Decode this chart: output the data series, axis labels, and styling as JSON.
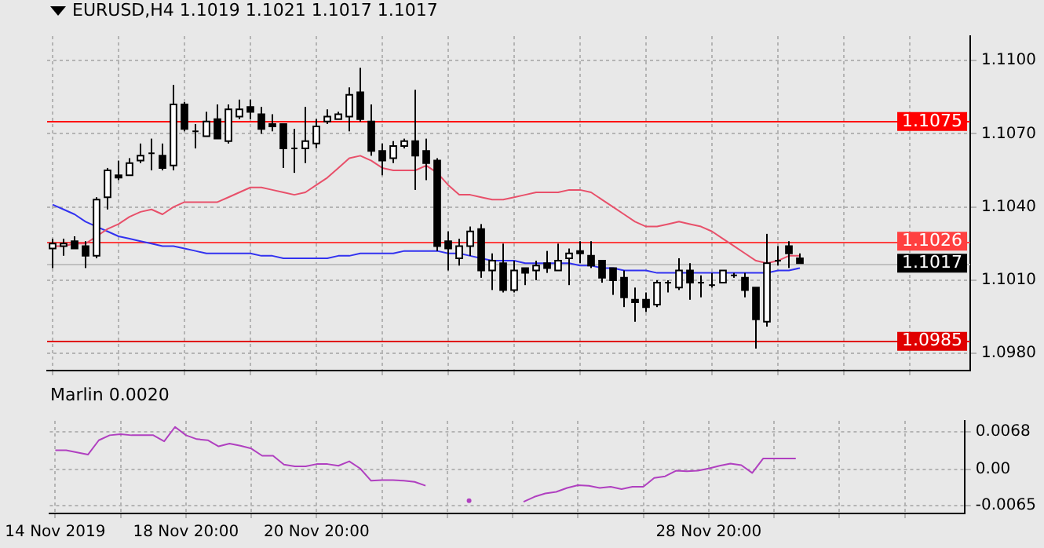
{
  "chart_data": [
    {
      "type": "candlestick",
      "title": "EURUSD,H4  1.1019 1.1021 1.1017 1.1017",
      "categories": [
        null,
        null,
        null,
        null,
        null,
        null,
        null,
        null,
        null,
        null,
        null,
        null,
        null,
        null,
        null,
        null,
        null,
        null,
        null,
        null,
        null,
        null,
        null,
        null,
        null,
        null,
        null,
        null,
        null,
        null,
        null,
        null,
        null,
        null,
        null,
        null,
        null,
        null,
        null,
        null,
        null,
        null,
        null,
        null,
        null,
        null,
        null,
        null,
        null,
        null,
        null,
        null,
        null,
        null,
        null,
        null,
        null,
        null,
        null,
        null,
        null,
        null,
        null,
        null,
        null,
        null,
        null,
        null,
        null,
        null,
        null,
        null,
        null,
        null,
        null,
        null,
        null,
        null,
        null,
        null,
        null,
        null,
        null,
        null
      ],
      "ohlc": [
        [
          1.1023,
          1.1027,
          1.1015,
          1.1025
        ],
        [
          1.1024,
          1.1027,
          1.102,
          1.1025
        ],
        [
          1.1026,
          1.1028,
          1.1023,
          1.1023
        ],
        [
          1.1024,
          1.1026,
          1.1015,
          1.102
        ],
        [
          1.102,
          1.1044,
          1.1019,
          1.1043
        ],
        [
          1.1044,
          1.1056,
          1.1039,
          1.1055
        ],
        [
          1.1053,
          1.1059,
          1.1051,
          1.1052
        ],
        [
          1.1053,
          1.106,
          1.1053,
          1.1058
        ],
        [
          1.1059,
          1.1066,
          1.1058,
          1.1061
        ],
        [
          1.1062,
          1.1068,
          1.1055,
          1.1062
        ],
        [
          1.1061,
          1.1066,
          1.1055,
          1.1056
        ],
        [
          1.1057,
          1.109,
          1.1055,
          1.1082
        ],
        [
          1.1082,
          1.1083,
          1.1071,
          1.1072
        ],
        [
          1.1071,
          1.1074,
          1.1064,
          1.1071
        ],
        [
          1.1069,
          1.1079,
          1.1069,
          1.1075
        ],
        [
          1.1076,
          1.1082,
          1.1068,
          1.1068
        ],
        [
          1.1067,
          1.1082,
          1.1066,
          1.108
        ],
        [
          1.1077,
          1.1084,
          1.1076,
          1.108
        ],
        [
          1.1081,
          1.1084,
          1.1076,
          1.1079
        ],
        [
          1.1078,
          1.1081,
          1.107,
          1.1072
        ],
        [
          1.1074,
          1.1078,
          1.1071,
          1.1073
        ],
        [
          1.1074,
          1.1074,
          1.1056,
          1.1064
        ],
        [
          1.1064,
          1.1072,
          1.1054,
          1.1064
        ],
        [
          1.1064,
          1.1081,
          1.1058,
          1.1067
        ],
        [
          1.1066,
          1.1076,
          1.1064,
          1.1073
        ],
        [
          1.1075,
          1.108,
          1.1074,
          1.1077
        ],
        [
          1.1076,
          1.1079,
          1.1076,
          1.1078
        ],
        [
          1.1077,
          1.1089,
          1.1071,
          1.1086
        ],
        [
          1.1087,
          1.1097,
          1.1075,
          1.1076
        ],
        [
          1.1075,
          1.1082,
          1.1061,
          1.1063
        ],
        [
          1.1063,
          1.1066,
          1.1053,
          1.1059
        ],
        [
          1.106,
          1.1067,
          1.1058,
          1.1065
        ],
        [
          1.1065,
          1.1068,
          1.1064,
          1.1067
        ],
        [
          1.1067,
          1.1088,
          1.1047,
          1.1061
        ],
        [
          1.1063,
          1.1068,
          1.1051,
          1.1058
        ],
        [
          1.1059,
          1.106,
          1.1022,
          1.1024
        ],
        [
          1.1026,
          1.103,
          1.1014,
          1.1023
        ],
        [
          1.1019,
          1.1027,
          1.1016,
          1.1024
        ],
        [
          1.1024,
          1.1032,
          1.102,
          1.103
        ],
        [
          1.1031,
          1.1033,
          1.1011,
          1.1014
        ],
        [
          1.1014,
          1.1021,
          1.1006,
          1.1018
        ],
        [
          1.1017,
          1.1025,
          1.1005,
          1.1006
        ],
        [
          1.1006,
          1.1018,
          1.1005,
          1.1014
        ],
        [
          1.1015,
          1.1015,
          1.1008,
          1.1013
        ],
        [
          1.1014,
          1.1018,
          1.101,
          1.1016
        ],
        [
          1.1017,
          1.1022,
          1.1013,
          1.1015
        ],
        [
          1.1014,
          1.1025,
          1.1014,
          1.1018
        ],
        [
          1.1019,
          1.1023,
          1.1008,
          1.1021
        ],
        [
          1.1022,
          1.1026,
          1.1017,
          1.1021
        ],
        [
          1.102,
          1.1026,
          1.1015,
          1.1016
        ],
        [
          1.1018,
          1.1018,
          1.1009,
          1.1011
        ],
        [
          1.1015,
          1.1015,
          1.1004,
          1.101
        ],
        [
          1.1011,
          1.1014,
          1.0999,
          1.1003
        ],
        [
          1.1002,
          1.1007,
          1.0993,
          1.1001
        ],
        [
          1.1002,
          1.1005,
          1.0997,
          1.0999
        ],
        [
          1.1,
          1.101,
          1.0999,
          1.1009
        ],
        [
          1.1009,
          1.101,
          1.1005,
          1.1009
        ],
        [
          1.1007,
          1.1019,
          1.1006,
          1.1014
        ],
        [
          1.1014,
          1.1017,
          1.1002,
          1.1009
        ],
        [
          1.1009,
          1.1012,
          1.1003,
          1.1009
        ],
        [
          1.1008,
          1.1013,
          1.1007,
          1.1008
        ],
        [
          1.1009,
          1.1014,
          1.1009,
          1.1014
        ],
        [
          1.1012,
          1.1013,
          1.1011,
          1.1012
        ],
        [
          1.1011,
          1.1013,
          1.1003,
          1.1006
        ],
        [
          1.1007,
          1.1007,
          1.0982,
          1.0994
        ],
        [
          1.0993,
          1.1029,
          1.0991,
          1.1017
        ],
        [
          1.1018,
          1.1024,
          1.1016,
          1.1018
        ],
        [
          1.1024,
          1.1026,
          1.1015,
          1.1021
        ],
        [
          1.1019,
          1.1021,
          1.1017,
          1.1017
        ],
        null,
        null,
        null,
        null,
        null,
        null,
        null,
        null,
        null,
        null,
        null,
        null,
        null,
        null,
        null
      ],
      "series": [
        {
          "type": "line",
          "color": "#e8506a",
          "values": [
            1.1024,
            1.1024,
            1.1025,
            1.1025,
            1.1028,
            1.1031,
            1.1033,
            1.1036,
            1.1038,
            1.1039,
            1.1037,
            1.104,
            1.1042,
            1.1042,
            1.1042,
            1.1042,
            1.1044,
            1.1046,
            1.1048,
            1.1048,
            1.1047,
            1.1046,
            1.1045,
            1.1046,
            1.1049,
            1.1052,
            1.1056,
            1.106,
            1.1061,
            1.1059,
            1.1056,
            1.1055,
            1.1055,
            1.1055,
            1.1057,
            1.1054,
            1.1049,
            1.1045,
            1.1045,
            1.1044,
            1.1043,
            1.1043,
            1.1044,
            1.1045,
            1.1046,
            1.1046,
            1.1046,
            1.1047,
            1.1047,
            1.1046,
            1.1043,
            1.104,
            1.1037,
            1.1034,
            1.1032,
            1.1032,
            1.1033,
            1.1034,
            1.1033,
            1.1032,
            1.103,
            1.1027,
            1.1024,
            1.1021,
            1.1018,
            1.1017,
            1.1018,
            1.102,
            1.102,
            null,
            null,
            null,
            null,
            null,
            null,
            null,
            null,
            null,
            null,
            null,
            null,
            null,
            null,
            null
          ]
        },
        {
          "type": "line",
          "color": "#3232f0",
          "values": [
            1.1041,
            1.1039,
            1.1037,
            1.1034,
            1.1032,
            1.103,
            1.1028,
            1.1027,
            1.1026,
            1.1025,
            1.1024,
            1.1024,
            1.1023,
            1.1022,
            1.1021,
            1.1021,
            1.1021,
            1.1021,
            1.1021,
            1.102,
            1.102,
            1.1019,
            1.1019,
            1.1019,
            1.1019,
            1.1019,
            1.102,
            1.102,
            1.1021,
            1.1021,
            1.1021,
            1.1021,
            1.1022,
            1.1022,
            1.1022,
            1.1022,
            1.1021,
            1.1021,
            1.102,
            1.1019,
            1.1018,
            1.1018,
            1.1018,
            1.1017,
            1.1017,
            1.1017,
            1.1017,
            1.1017,
            1.1016,
            1.1016,
            1.1015,
            1.1015,
            1.1014,
            1.1014,
            1.1014,
            1.1013,
            1.1013,
            1.1013,
            1.1013,
            1.1013,
            1.1013,
            1.1013,
            1.1013,
            1.1013,
            1.1013,
            1.1013,
            1.1014,
            1.1014,
            1.1015,
            null,
            null,
            null,
            null,
            null,
            null,
            null,
            null,
            null,
            null,
            null,
            null,
            null,
            null,
            null
          ]
        }
      ],
      "ylim": [
        1.0973,
        1.111
      ],
      "yticks": [
        {
          "value": 1.11,
          "label": "1.1100"
        },
        {
          "value": 1.107,
          "label": "1.1070"
        },
        {
          "value": 1.104,
          "label": "1.1040"
        },
        {
          "value": 1.101,
          "label": "1.1010"
        },
        {
          "value": 1.098,
          "label": "1.0980"
        }
      ],
      "ref_lines": [
        {
          "axis": "y",
          "value": 1.1075,
          "label": "1.1075",
          "color": "#ff0000"
        },
        {
          "axis": "y",
          "value": 1.1026,
          "label": "1.1026",
          "color": "#ff4040"
        },
        {
          "axis": "y",
          "value": 1.0985,
          "label": "1.0985",
          "color": "#e00000"
        },
        {
          "axis": "y",
          "value": 1.1017,
          "label": "1.1017",
          "color": "#c0c0c0"
        }
      ],
      "grid": true,
      "tick_labels": "y"
    },
    {
      "type": "line",
      "title": "Marlin 0.0020",
      "categories": [
        "14 Nov 2019",
        null,
        null,
        null,
        null,
        null,
        null,
        null,
        null,
        null,
        null,
        null,
        "18 Nov 20:00",
        null,
        null,
        null,
        null,
        null,
        null,
        null,
        null,
        null,
        null,
        null,
        "20 Nov 20:00",
        null,
        null,
        null,
        null,
        null,
        null,
        null,
        null,
        null,
        null,
        null,
        null,
        null,
        null,
        null,
        null,
        null,
        null,
        null,
        null,
        null,
        null,
        null,
        null,
        null,
        null,
        null,
        null,
        null,
        null,
        null,
        null,
        null,
        null,
        null,
        "28 Nov 20:00",
        null,
        null,
        null,
        null,
        null,
        null,
        null,
        null,
        null,
        null,
        null,
        null,
        null,
        null,
        null,
        null,
        null,
        null,
        null,
        null,
        null,
        null,
        null
      ],
      "series": [
        {
          "color": "#b040c0",
          "values": [
            0.0035,
            0.0035,
            0.0031,
            0.0027,
            0.0053,
            0.0062,
            0.0064,
            0.0062,
            0.0062,
            0.0062,
            0.0051,
            0.0077,
            0.0062,
            0.0055,
            0.0053,
            0.0042,
            0.0047,
            0.0043,
            0.0038,
            0.0025,
            0.0025,
            0.0009,
            0.0006,
            0.0006,
            0.001,
            0.001,
            0.0007,
            0.0015,
            0.0002,
            -0.002,
            -0.0019,
            -0.0019,
            -0.002,
            -0.0022,
            -0.0029,
            null,
            null,
            null,
            -0.0056,
            null,
            null,
            null,
            null,
            -0.0058,
            -0.0049,
            -0.0043,
            -0.004,
            -0.0033,
            -0.0028,
            -0.0029,
            -0.0033,
            -0.0031,
            -0.0035,
            -0.0031,
            -0.0031,
            -0.0015,
            -0.0012,
            -0.0002,
            -0.0003,
            -0.0002,
            0.0002,
            0.0007,
            0.0011,
            0.0008,
            -0.0006,
            0.002,
            0.002,
            0.002,
            0.002,
            null,
            null,
            null,
            null,
            null,
            null,
            null,
            null,
            null,
            null,
            null,
            null,
            null,
            null,
            null
          ]
        }
      ],
      "ylim": [
        -0.0079,
        0.0088
      ],
      "yticks": [
        0.0068,
        {
          "value": 0,
          "label": "0.00"
        },
        -0.0065
      ],
      "grid": true
    }
  ]
}
